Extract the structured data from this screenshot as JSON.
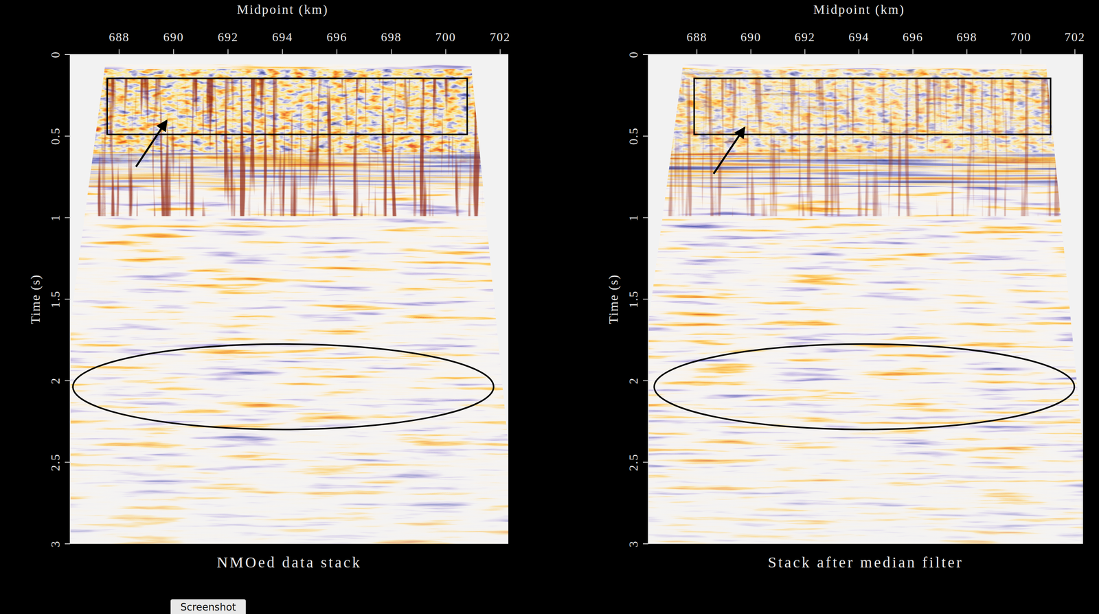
{
  "chart_data": [
    {
      "type": "seismic",
      "title": "NMOed data stack",
      "x_label": "Midpoint (km)",
      "y_label": "Time (s)",
      "xlim": [
        686.2,
        702.3
      ],
      "ylim": [
        0,
        3
      ],
      "xticks": [
        688,
        690,
        692,
        694,
        696,
        698,
        700,
        702
      ],
      "yticks": [
        0,
        0.5,
        1,
        1.5,
        2,
        2.5,
        3
      ],
      "annotations": [
        {
          "type": "box",
          "x": [
            687.56,
            700.79
          ],
          "y": [
            0.146,
            0.49
          ]
        },
        {
          "type": "arrow",
          "x": [
            688.62,
            689.75
          ],
          "y": [
            0.688,
            0.404
          ]
        },
        {
          "type": "ellipse",
          "x": 694.03,
          "y": 2.037,
          "rx": 7.73,
          "ry": 0.262
        }
      ]
    },
    {
      "type": "seismic",
      "title": "Stack after median filter",
      "x_label": "Midpoint (km)",
      "y_label": "Time (s)",
      "xlim": [
        686.2,
        702.3
      ],
      "ylim": [
        0,
        3
      ],
      "xticks": [
        688,
        690,
        692,
        694,
        696,
        698,
        700,
        702
      ],
      "yticks": [
        0,
        0.5,
        1,
        1.5,
        2,
        2.5,
        3
      ],
      "annotations": [
        {
          "type": "box",
          "x": [
            687.9,
            701.1
          ],
          "y": [
            0.146,
            0.49
          ]
        },
        {
          "type": "arrow",
          "x": [
            688.62,
            689.77
          ],
          "y": [
            0.731,
            0.447
          ]
        },
        {
          "type": "ellipse",
          "x": 694.2,
          "y": 2.037,
          "rx": 7.78,
          "ry": 0.262
        }
      ]
    }
  ],
  "button": "Screenshot"
}
